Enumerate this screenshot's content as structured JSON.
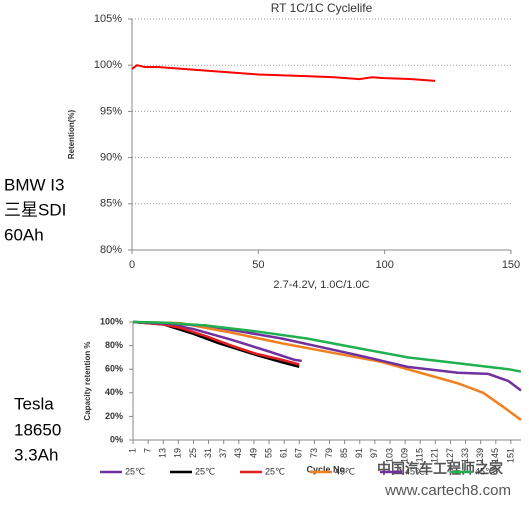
{
  "chart_data": [
    {
      "type": "line",
      "title": "RT 1C/1C Cyclelife",
      "x_label": "2.7-4.2V, 1.0C/1.0C",
      "y_label": "Retention(%)",
      "xlim": [
        0,
        150
      ],
      "xticks": [
        0,
        50,
        100,
        150
      ],
      "ylim": [
        80,
        105
      ],
      "yticks": [
        {
          "value": 80,
          "label": "80%"
        },
        {
          "value": 85,
          "label": "85%"
        },
        {
          "value": 90,
          "label": "90%"
        },
        {
          "value": 95,
          "label": "95%"
        },
        {
          "value": 100,
          "label": "100%"
        },
        {
          "value": 105,
          "label": "105%"
        }
      ],
      "grid": true,
      "series": [
        {
          "color": "#ff0000",
          "x": [
            0,
            2,
            5,
            10,
            20,
            30,
            40,
            50,
            60,
            70,
            80,
            90,
            95,
            100,
            110,
            120
          ],
          "values": [
            99.6,
            100.0,
            99.8,
            99.8,
            99.6,
            99.4,
            99.2,
            99.0,
            98.9,
            98.8,
            98.7,
            98.5,
            98.7,
            98.6,
            98.5,
            98.3
          ]
        }
      ]
    },
    {
      "type": "line",
      "x_label": "Cycle No.",
      "y_label": "Capacity retention %",
      "xlim": [
        1,
        155
      ],
      "xticks": [
        1,
        7,
        13,
        19,
        25,
        31,
        37,
        43,
        49,
        55,
        61,
        67,
        73,
        79,
        85,
        91,
        97,
        103,
        109,
        115,
        121,
        127,
        133,
        139,
        145,
        151
      ],
      "ylim": [
        0,
        100
      ],
      "yticks": [
        {
          "value": 0,
          "label": "0%"
        },
        {
          "value": 20,
          "label": "20%"
        },
        {
          "value": 40,
          "label": "40%"
        },
        {
          "value": 60,
          "label": "60%"
        },
        {
          "value": 80,
          "label": "80%"
        },
        {
          "value": 100,
          "label": "100%"
        }
      ],
      "grid": false,
      "series": [
        {
          "name": "25℃",
          "color": "#7030a0",
          "x": [
            1,
            13,
            25,
            40,
            55,
            65,
            68
          ],
          "values": [
            100,
            99,
            94,
            85,
            75,
            68,
            67
          ]
        },
        {
          "name": "25℃",
          "color": "#000000",
          "x": [
            1,
            13,
            25,
            35,
            50,
            60,
            67
          ],
          "values": [
            100,
            98,
            90,
            82,
            72,
            66,
            62
          ]
        },
        {
          "name": "25℃",
          "color": "#e02020",
          "x": [
            1,
            13,
            20,
            30,
            40,
            50,
            60,
            67
          ],
          "values": [
            100,
            98,
            95,
            88,
            80,
            73,
            68,
            64
          ]
        },
        {
          "name": "45℃",
          "color": "#f08020",
          "x": [
            1,
            20,
            40,
            60,
            80,
            100,
            115,
            130,
            140,
            148,
            155
          ],
          "values": [
            100,
            99,
            91,
            82,
            74,
            66,
            57,
            48,
            40,
            28,
            17
          ]
        },
        {
          "name": "45℃",
          "color": "#7030a0",
          "x": [
            1,
            30,
            60,
            90,
            110,
            130,
            142,
            150,
            155
          ],
          "values": [
            100,
            97,
            86,
            72,
            62,
            57,
            56,
            50,
            42
          ]
        },
        {
          "name": "45℃",
          "color": "#20b050",
          "x": [
            1,
            13,
            30,
            50,
            70,
            90,
            110,
            130,
            150,
            155
          ],
          "values": [
            100,
            99.5,
            97,
            92,
            86,
            78,
            70,
            65,
            60,
            58
          ]
        }
      ]
    }
  ],
  "labels": {
    "top": [
      "BMW I3",
      "三星SDI",
      "60Ah"
    ],
    "bottom": [
      "Tesla",
      "18650",
      "3.3Ah"
    ]
  },
  "watermark": {
    "cn": "中国汽车工程师之家",
    "url": "www.cartech8.com"
  }
}
